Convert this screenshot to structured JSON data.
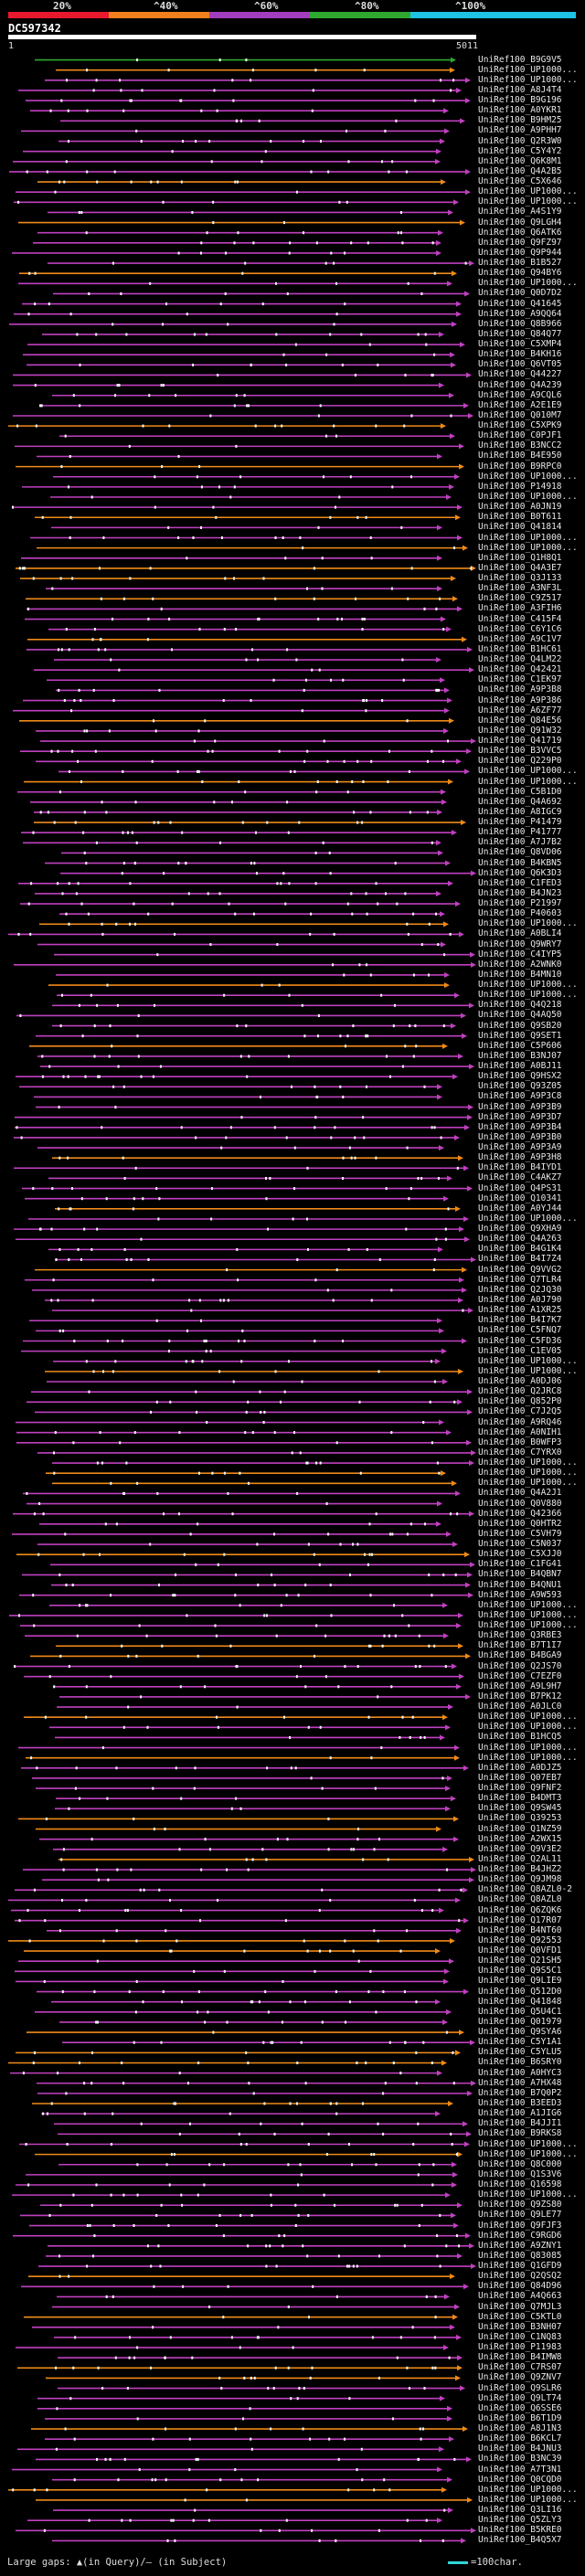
{
  "scale": {
    "labels": [
      "20%",
      "^40%",
      "^60%",
      "^80%",
      "^100%"
    ],
    "colors": [
      "#e8192c",
      "#f07f1e",
      "#a23dbd",
      "#2ea82f",
      "#1ec2e3"
    ]
  },
  "query": {
    "id": "DC597342",
    "start": "1",
    "end": "5011"
  },
  "colors": {
    "identity_high": "#2ea82f",
    "identity_mid": "#c040c0",
    "identity_low": "#f08a18",
    "marker": "#ffffff"
  },
  "hits": [
    "UniRef100_B9G9V5",
    "UniRef100_UP1000...",
    "UniRef100_UP1000...",
    "UniRef100_A8J4T4",
    "UniRef100_B9G196",
    "UniRef100_A0YKR1",
    "UniRef100_B9HM25",
    "UniRef100_A9PHH7",
    "UniRef100_Q2R3W0",
    "UniRef100_C5Y4Y2",
    "UniRef100_Q6K8M1",
    "UniRef100_Q4A2B5",
    "UniRef100_C5X646",
    "UniRef100_UP1000...",
    "UniRef100_UP1000...",
    "UniRef100_A4S1Y9",
    "UniRef100_Q9LGH4",
    "UniRef100_Q6ATK6",
    "UniRef100_Q9FZ97",
    "UniRef100_Q9P944",
    "UniRef100_B1B527",
    "UniRef100_Q94BY6",
    "UniRef100_UP1000...",
    "UniRef100_Q0D7D2",
    "UniRef100_Q41645",
    "UniRef100_A9QQ64",
    "UniRef100_Q8B966",
    "UniRef100_Q84Q77",
    "UniRef100_C5XMP4",
    "UniRef100_B4KH16",
    "UniRef100_Q6VT05",
    "UniRef100_Q44227",
    "UniRef100_Q4A239",
    "UniRef100_A9CQL6",
    "UniRef100_A2E1E9",
    "UniRef100_Q010M7",
    "UniRef100_C5XPK9",
    "UniRef100_C0PJF1",
    "UniRef100_B3NCC2",
    "UniRef100_B4E950",
    "UniRef100_B9RPC0",
    "UniRef100_UP1000...",
    "UniRef100_P14918",
    "UniRef100_UP1000...",
    "UniRef100_A0JN19",
    "UniRef100_B0T611",
    "UniRef100_Q41814",
    "UniRef100_UP1000...",
    "UniRef100_UP1000...",
    "UniRef100_Q1H8Q1",
    "UniRef100_Q4A3E7",
    "UniRef100_Q3J133",
    "UniRef100_A3NF3L",
    "UniRef100_C9Z517",
    "UniRef100_A3FIH6",
    "UniRef100_C415F4",
    "UniRef100_C6Y1C6",
    "UniRef100_A9C1V7",
    "UniRef100_B1HC61",
    "UniRef100_Q4LM22",
    "UniRef100_Q42421",
    "UniRef100_C1EK97",
    "UniRef100_A9P3B8",
    "UniRef100_A9P386",
    "UniRef100_A6ZF77",
    "UniRef100_Q84E56",
    "UniRef100_Q91W32",
    "UniRef100_Q41719",
    "UniRef100_B3VVC5",
    "UniRef100_Q229P0",
    "UniRef100_UP1000...",
    "UniRef100_UP1000...",
    "UniRef100_C5B1D0",
    "UniRef100_Q4A692",
    "UniRef100_A8IGC9",
    "UniRef100_P41479",
    "UniRef100_P41777",
    "UniRef100_A7J7B2",
    "UniRef100_Q8VD06",
    "UniRef100_B4KBN5",
    "UniRef100_Q6K3D3",
    "UniRef100_C1FED3",
    "UniRef100_B4JN23",
    "UniRef100_P21997",
    "UniRef100_P40603",
    "UniRef100_UP1000...",
    "UniRef100_A0BLI4",
    "UniRef100_Q9WRY7",
    "UniRef100_C4IYP5",
    "UniRef100_A2WNK0",
    "UniRef100_B4MN10",
    "UniRef100_UP1000...",
    "UniRef100_UP1000...",
    "UniRef100_Q4Q218",
    "UniRef100_Q4AQ50",
    "UniRef100_Q9SB20",
    "UniRef100_Q9SET1",
    "UniRef100_C5P606",
    "UniRef100_B3NJ07",
    "UniRef100_A0BJ11",
    "UniRef100_Q9HSX2",
    "UniRef100_Q93Z05",
    "UniRef100_A9P3C8",
    "UniRef100_A9P3B9",
    "UniRef100_A9P3D7",
    "UniRef100_A9P3B4",
    "UniRef100_A9P3B0",
    "UniRef100_A9P3A9",
    "UniRef100_A9P3H8",
    "UniRef100_B4IYD1",
    "UniRef100_C4AKZ7",
    "UniRef100_Q4PS31",
    "UniRef100_Q10341",
    "UniRef100_A0YJ44",
    "UniRef100_UP1000...",
    "UniRef100_Q9XHA9",
    "UniRef100_Q4A263",
    "UniRef100_B4G1K4",
    "UniRef100_B4I7Z4",
    "UniRef100_Q9VVG2",
    "UniRef100_Q7TLR4",
    "UniRef100_Q2JQ30",
    "UniRef100_A0J790",
    "UniRef100_A1XR25",
    "UniRef100_B4I7K7",
    "UniRef100_C5FNQ7",
    "UniRef100_C5FD36",
    "UniRef100_C1EV05",
    "UniRef100_UP1000...",
    "UniRef100_UP1000...",
    "UniRef100_A0DJ06",
    "UniRef100_Q2JRC8",
    "UniRef100_Q852P0",
    "UniRef100_C7J2Q5",
    "UniRef100_A9RQ46",
    "UniRef100_A0NIH1",
    "UniRef100_B0WFP3",
    "UniRef100_C7YRX0",
    "UniRef100_UP1000...",
    "UniRef100_UP1000...",
    "UniRef100_UP1000...",
    "UniRef100_Q4A2J1",
    "UniRef100_Q0V880",
    "UniRef100_Q42366",
    "UniRef100_Q0HTR2",
    "UniRef100_C5VH79",
    "UniRef100_C5N037",
    "UniRef100_C5XJJ0",
    "UniRef100_C1FG41",
    "UniRef100_B4QBN7",
    "UniRef100_B4QNU1",
    "UniRef100_A9W593",
    "UniRef100_UP1000...",
    "UniRef100_UP1000...",
    "UniRef100_UP1000...",
    "UniRef100_Q3RBE3",
    "UniRef100_B7T1I7",
    "UniRef100_B4BGA9",
    "UniRef100_Q2JS70",
    "UniRef100_C7EZF0",
    "UniRef100_A9L9H7",
    "UniRef100_B7PK12",
    "UniRef100_A0JLC0",
    "UniRef100_UP1000...",
    "UniRef100_UP1000...",
    "UniRef100_B1HCQ5",
    "UniRef100_UP1000...",
    "UniRef100_UP1000...",
    "UniRef100_A0DJZ5",
    "UniRef100_Q07EB7",
    "UniRef100_Q9FNF2",
    "UniRef100_B4DMT3",
    "UniRef100_Q9SW45",
    "UniRef100_Q39253",
    "UniRef100_Q1NZ59",
    "UniRef100_A2WX15",
    "UniRef100_Q9V3E2",
    "UniRef100_Q2AL11",
    "UniRef100_B4JHZ2",
    "UniRef100_Q9JM98",
    "UniRef100_Q8AZL0-2",
    "UniRef100_Q8AZL0",
    "UniRef100_Q6ZQK6",
    "UniRef100_Q17R07",
    "UniRef100_B4NT60",
    "UniRef100_Q92553",
    "UniRef100_Q0VFD1",
    "UniRef100_Q21SH5",
    "UniRef100_Q9S5C1",
    "UniRef100_Q9LIE9",
    "UniRef100_Q512D0",
    "UniRef100_Q41848",
    "UniRef100_Q5U4C1",
    "UniRef100_Q01979",
    "UniRef100_Q9SYA6",
    "UniRef100_C5Y1A1",
    "UniRef100_C5YLU5",
    "UniRef100_B6SRY0",
    "UniRef100_A0HYC3",
    "UniRef100_A7HX48",
    "UniRef100_B7Q0P2",
    "UniRef100_B3EED3",
    "UniRef100_A1JIG6",
    "UniRef100_B4JJI1",
    "UniRef100_B9RKS8",
    "UniRef100_UP1000...",
    "UniRef100_UP1000...",
    "UniRef100_Q8C000",
    "UniRef100_Q1S3V6",
    "UniRef100_Q16598",
    "UniRef100_UP1000...",
    "UniRef100_Q9ZS80",
    "UniRef100_Q9LE77",
    "UniRef100_Q9FJF3",
    "UniRef100_C9RGD6",
    "UniRef100_A9ZNY1",
    "UniRef100_Q83085",
    "UniRef100_Q1GFD9",
    "UniRef100_Q2QSQ2",
    "UniRef100_Q84D96",
    "UniRef100_A4Q663",
    "UniRef100_Q7MJL3",
    "UniRef100_C5KTL0",
    "UniRef100_B3NH07",
    "UniRef100_C1NQ83",
    "UniRef100_P11983",
    "UniRef100_B4IMW8",
    "UniRef100_C7RS07",
    "UniRef100_Q9ZNV7",
    "UniRef100_Q9SLR6",
    "UniRef100_Q9LT74",
    "UniRef100_Q6SSE6",
    "UniRef100_B6T1D9",
    "UniRef100_A8J1N3",
    "UniRef100_B6KCL7",
    "UniRef100_B4JNU3",
    "UniRef100_B3NC39",
    "UniRef100_A7T3N1",
    "UniRef100_Q0CQD0",
    "UniRef100_UP1000...",
    "UniRef100_UP1000...",
    "UniRef100_Q3LI16",
    "UniRef100_Q5ZLY3",
    "UniRef100_B5KRE0",
    "UniRef100_B4Q5X7"
  ],
  "legend": {
    "text": "Large gaps: ▲(in Query)/– (in Subject)",
    "scale_text": "=100char."
  }
}
